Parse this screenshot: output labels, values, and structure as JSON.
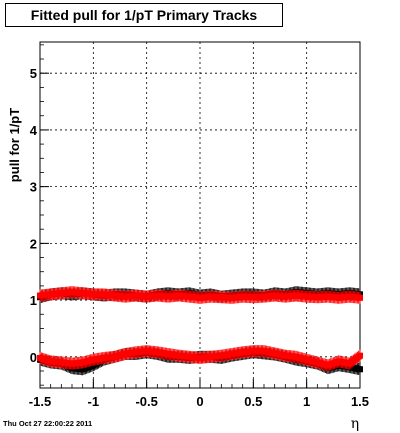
{
  "title": "Fitted pull for 1/pT  Primary Tracks",
  "footer": "Thu Oct 27 22:00:22 2011",
  "chart_data": {
    "type": "scatter",
    "title": "Fitted pull for 1/pT  Primary Tracks",
    "xlabel": "η",
    "ylabel": "pull for 1/pT",
    "xlim": [
      -1.5,
      1.5
    ],
    "ylim": [
      -0.55,
      5.55
    ],
    "grid": true,
    "x_ticks": [
      "-1.5",
      "-1",
      "-0.5",
      "0",
      "0.5",
      "1",
      "1.5"
    ],
    "y_ticks": [
      "0",
      "1",
      "2",
      "3",
      "4",
      "5"
    ],
    "series": [
      {
        "color": "#000000",
        "role": "sigma",
        "x": [
          -1.5,
          -1.4,
          -1.3,
          -1.2,
          -1.1,
          -1.0,
          -0.9,
          -0.8,
          -0.7,
          -0.6,
          -0.5,
          -0.4,
          -0.3,
          -0.2,
          -0.1,
          0.0,
          0.1,
          0.2,
          0.3,
          0.4,
          0.5,
          0.6,
          0.7,
          0.8,
          0.9,
          1.0,
          1.1,
          1.2,
          1.3,
          1.4,
          1.5
        ],
        "y": [
          1.05,
          1.1,
          1.12,
          1.1,
          1.12,
          1.1,
          1.08,
          1.1,
          1.1,
          1.08,
          1.06,
          1.1,
          1.12,
          1.1,
          1.12,
          1.08,
          1.1,
          1.06,
          1.08,
          1.1,
          1.1,
          1.08,
          1.12,
          1.1,
          1.14,
          1.12,
          1.1,
          1.12,
          1.1,
          1.12,
          1.1
        ]
      },
      {
        "color": "#000000",
        "role": "mean",
        "x": [
          -1.5,
          -1.4,
          -1.3,
          -1.2,
          -1.1,
          -1.0,
          -0.9,
          -0.8,
          -0.7,
          -0.6,
          -0.5,
          -0.4,
          -0.3,
          -0.2,
          -0.1,
          0.0,
          0.1,
          0.2,
          0.3,
          0.4,
          0.5,
          0.6,
          0.7,
          0.8,
          0.9,
          1.0,
          1.1,
          1.2,
          1.3,
          1.4,
          1.5
        ],
        "y": [
          -0.05,
          -0.1,
          -0.12,
          -0.2,
          -0.22,
          -0.15,
          -0.05,
          0.0,
          0.05,
          0.05,
          0.08,
          0.05,
          0.0,
          0.0,
          -0.02,
          0.0,
          0.0,
          -0.02,
          0.02,
          0.05,
          0.08,
          0.06,
          0.04,
          0.0,
          -0.05,
          -0.08,
          -0.12,
          -0.2,
          -0.15,
          -0.18,
          -0.22
        ]
      },
      {
        "color": "#ff0000",
        "role": "sigma",
        "x": [
          -1.5,
          -1.4,
          -1.3,
          -1.2,
          -1.1,
          -1.0,
          -0.9,
          -0.8,
          -0.7,
          -0.6,
          -0.5,
          -0.4,
          -0.3,
          -0.2,
          -0.1,
          0.0,
          0.1,
          0.2,
          0.3,
          0.4,
          0.5,
          0.6,
          0.7,
          0.8,
          0.9,
          1.0,
          1.1,
          1.2,
          1.3,
          1.4,
          1.5
        ],
        "y": [
          1.08,
          1.1,
          1.12,
          1.14,
          1.12,
          1.1,
          1.1,
          1.08,
          1.06,
          1.08,
          1.06,
          1.08,
          1.06,
          1.08,
          1.06,
          1.04,
          1.06,
          1.05,
          1.04,
          1.06,
          1.05,
          1.06,
          1.08,
          1.06,
          1.08,
          1.06,
          1.05,
          1.06,
          1.04,
          1.06,
          1.04
        ]
      },
      {
        "color": "#ff0000",
        "role": "mean",
        "x": [
          -1.5,
          -1.4,
          -1.3,
          -1.2,
          -1.1,
          -1.0,
          -0.9,
          -0.8,
          -0.7,
          -0.6,
          -0.5,
          -0.4,
          -0.3,
          -0.2,
          -0.1,
          0.0,
          0.1,
          0.2,
          0.3,
          0.4,
          0.5,
          0.6,
          0.7,
          0.8,
          0.9,
          1.0,
          1.1,
          1.2,
          1.3,
          1.4,
          1.5
        ],
        "y": [
          -0.02,
          -0.08,
          -0.1,
          -0.12,
          -0.1,
          -0.05,
          -0.02,
          0.0,
          0.05,
          0.08,
          0.1,
          0.08,
          0.05,
          0.02,
          0.0,
          -0.02,
          0.0,
          0.02,
          0.05,
          0.08,
          0.1,
          0.1,
          0.06,
          0.02,
          0.0,
          -0.05,
          -0.1,
          -0.15,
          -0.08,
          -0.12,
          0.02
        ]
      }
    ]
  }
}
